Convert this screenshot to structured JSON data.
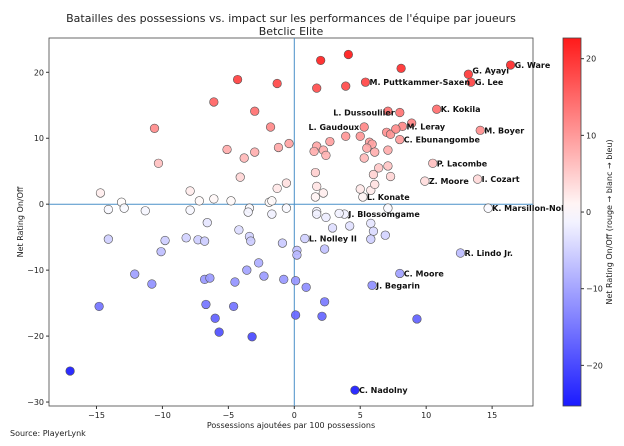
{
  "chart_data": {
    "type": "scatter",
    "title": "Batailles des possessions vs. impact sur les performances de l'équipe par joueurs",
    "subtitle": "Betclic Elite",
    "xlabel": "Possessions ajoutées par 100 possessions",
    "ylabel": "Net Rating On/Off",
    "xlim": [
      -18.6,
      18.1
    ],
    "ylim": [
      -30.6,
      25.2
    ],
    "xticks": [
      -15,
      -10,
      -5,
      0,
      5,
      10,
      15
    ],
    "yticks": [
      20,
      10,
      0,
      -10,
      -20,
      -30
    ],
    "reference_lines": {
      "x": 0,
      "y": 0
    },
    "colorbar": {
      "label": "Net Rating On/Off (rouge → blanc → bleu)",
      "range": [
        -25.3,
        22.7
      ],
      "ticks": [
        20,
        10,
        0,
        -10,
        -20
      ],
      "colormap": "bwr",
      "high_color": "#ff1a1a",
      "mid_color": "#ffffff",
      "low_color": "#1a1aff"
    },
    "source": "Source: PlayerLynk",
    "points": [
      {
        "x": 16.4,
        "y": 21.1,
        "label": "G. Ware"
      },
      {
        "x": 13.2,
        "y": 19.7,
        "label": "G. Ayayi"
      },
      {
        "x": 13.4,
        "y": 18.5,
        "label": "G. Lee"
      },
      {
        "x": 5.4,
        "y": 18.5,
        "label": "M. Puttkammer-Saxen"
      },
      {
        "x": 8.0,
        "y": 13.9,
        "label": "L. Dussouliier"
      },
      {
        "x": 10.8,
        "y": 14.4,
        "label": "K. Kokila"
      },
      {
        "x": 8.2,
        "y": 11.8,
        "label": "M. Leray"
      },
      {
        "x": 5.3,
        "y": 11.7,
        "label": "L. Gaudoux"
      },
      {
        "x": 8.0,
        "y": 9.8,
        "label": "C. Ebunangombe"
      },
      {
        "x": 14.1,
        "y": 11.2,
        "label": "M. Boyer"
      },
      {
        "x": 10.5,
        "y": 6.2,
        "label": "P. Lacombe"
      },
      {
        "x": 9.9,
        "y": 3.5,
        "label": "Z. Moore"
      },
      {
        "x": 13.9,
        "y": 3.8,
        "label": "I. Cozart"
      },
      {
        "x": 5.2,
        "y": 1.1,
        "label": "L. Konate"
      },
      {
        "x": 14.7,
        "y": -0.6,
        "label": "K. Marsillon-Nole"
      },
      {
        "x": 3.8,
        "y": -1.5,
        "label": "J. Blossomgame"
      },
      {
        "x": 0.8,
        "y": -5.2,
        "label": "L. Nolley II"
      },
      {
        "x": 12.6,
        "y": -7.4,
        "label": "R. Lindo Jr."
      },
      {
        "x": 8.0,
        "y": -10.5,
        "label": "C. Moore"
      },
      {
        "x": 5.9,
        "y": -12.3,
        "label": "J. Begarin"
      },
      {
        "x": 4.6,
        "y": -28.2,
        "label": "C. Nadolny"
      },
      {
        "x": 2.0,
        "y": 21.8
      },
      {
        "x": 4.1,
        "y": 22.7
      },
      {
        "x": 8.1,
        "y": 20.6
      },
      {
        "x": 1.7,
        "y": 17.6
      },
      {
        "x": 3.9,
        "y": 17.9
      },
      {
        "x": 7.1,
        "y": 14.1
      },
      {
        "x": 7.0,
        "y": 10.9
      },
      {
        "x": 7.3,
        "y": 10.6
      },
      {
        "x": 7.7,
        "y": 11.4
      },
      {
        "x": 8.9,
        "y": 12.3
      },
      {
        "x": 2.7,
        "y": 9.5
      },
      {
        "x": 3.9,
        "y": 10.3
      },
      {
        "x": 5.0,
        "y": 10.3
      },
      {
        "x": 1.7,
        "y": 8.8
      },
      {
        "x": 1.5,
        "y": 8.0
      },
      {
        "x": 2.2,
        "y": 8.2
      },
      {
        "x": 2.4,
        "y": 7.4
      },
      {
        "x": 5.7,
        "y": 9.4
      },
      {
        "x": 5.9,
        "y": 9.1
      },
      {
        "x": 5.5,
        "y": 8.5
      },
      {
        "x": 6.1,
        "y": 7.9
      },
      {
        "x": 5.3,
        "y": 7.0
      },
      {
        "x": 7.1,
        "y": 8.2
      },
      {
        "x": 1.6,
        "y": 4.8
      },
      {
        "x": 6.4,
        "y": 5.5
      },
      {
        "x": 7.1,
        "y": 5.8
      },
      {
        "x": 6.0,
        "y": 4.5
      },
      {
        "x": 7.3,
        "y": 4.2
      },
      {
        "x": 1.7,
        "y": 2.7
      },
      {
        "x": 2.2,
        "y": 1.7
      },
      {
        "x": 1.6,
        "y": 1.1
      },
      {
        "x": 5.0,
        "y": 2.3
      },
      {
        "x": 5.8,
        "y": 2.1
      },
      {
        "x": 6.1,
        "y": 3.0
      },
      {
        "x": 7.1,
        "y": -0.6
      },
      {
        "x": 1.7,
        "y": -1.1
      },
      {
        "x": 1.7,
        "y": -1.5
      },
      {
        "x": 2.4,
        "y": -2.0
      },
      {
        "x": 3.4,
        "y": -1.4
      },
      {
        "x": 2.9,
        "y": -3.6
      },
      {
        "x": 4.2,
        "y": -3.3
      },
      {
        "x": 5.8,
        "y": -2.9
      },
      {
        "x": 6.0,
        "y": -4.1
      },
      {
        "x": 6.9,
        "y": -4.7
      },
      {
        "x": 5.8,
        "y": -5.3
      },
      {
        "x": 2.3,
        "y": -6.8
      },
      {
        "x": 0.9,
        "y": -12.6
      },
      {
        "x": 2.3,
        "y": -14.8
      },
      {
        "x": 9.3,
        "y": -17.4
      },
      {
        "x": 2.1,
        "y": -17.0
      },
      {
        "x": -4.3,
        "y": 18.9
      },
      {
        "x": -1.3,
        "y": 18.3
      },
      {
        "x": -6.1,
        "y": 15.5
      },
      {
        "x": -3.0,
        "y": 14.1
      },
      {
        "x": -10.6,
        "y": 11.5
      },
      {
        "x": -1.8,
        "y": 11.7
      },
      {
        "x": -5.1,
        "y": 8.3
      },
      {
        "x": -1.2,
        "y": 8.6
      },
      {
        "x": -0.4,
        "y": 9.2
      },
      {
        "x": -3.8,
        "y": 7.0
      },
      {
        "x": -3.0,
        "y": 7.9
      },
      {
        "x": -10.3,
        "y": 6.2
      },
      {
        "x": -4.1,
        "y": 4.1
      },
      {
        "x": -0.6,
        "y": 3.2
      },
      {
        "x": -1.3,
        "y": 2.4
      },
      {
        "x": -14.7,
        "y": 1.7
      },
      {
        "x": -7.9,
        "y": 2.0
      },
      {
        "x": -13.1,
        "y": 0.3
      },
      {
        "x": -7.2,
        "y": 0.5
      },
      {
        "x": -6.1,
        "y": 0.8
      },
      {
        "x": -4.8,
        "y": 0.5
      },
      {
        "x": -1.9,
        "y": 0.3
      },
      {
        "x": -1.7,
        "y": 0.5
      },
      {
        "x": -14.1,
        "y": -0.8
      },
      {
        "x": -12.9,
        "y": -0.6
      },
      {
        "x": -11.3,
        "y": -1.0
      },
      {
        "x": -7.9,
        "y": -0.9
      },
      {
        "x": -3.4,
        "y": -0.6
      },
      {
        "x": -3.5,
        "y": -1.2
      },
      {
        "x": -1.7,
        "y": -1.5
      },
      {
        "x": -0.6,
        "y": -0.6
      },
      {
        "x": -6.6,
        "y": -2.8
      },
      {
        "x": -14.1,
        "y": -5.3
      },
      {
        "x": -9.8,
        "y": -5.5
      },
      {
        "x": -8.2,
        "y": -5.1
      },
      {
        "x": -7.3,
        "y": -5.4
      },
      {
        "x": -6.8,
        "y": -5.6
      },
      {
        "x": -4.2,
        "y": -3.9
      },
      {
        "x": -3.4,
        "y": -4.9
      },
      {
        "x": -3.3,
        "y": -5.6
      },
      {
        "x": -0.9,
        "y": -5.9
      },
      {
        "x": -10.1,
        "y": -7.2
      },
      {
        "x": 0.2,
        "y": -7.0
      },
      {
        "x": 0.2,
        "y": -7.7
      },
      {
        "x": -12.1,
        "y": -10.6
      },
      {
        "x": -10.8,
        "y": -12.1
      },
      {
        "x": -6.8,
        "y": -11.4
      },
      {
        "x": -6.4,
        "y": -11.2
      },
      {
        "x": -4.5,
        "y": -11.8
      },
      {
        "x": -3.6,
        "y": -10.0
      },
      {
        "x": -2.7,
        "y": -8.9
      },
      {
        "x": -2.3,
        "y": -10.9
      },
      {
        "x": -0.8,
        "y": -11.4
      },
      {
        "x": 0.1,
        "y": -11.6
      },
      {
        "x": -14.8,
        "y": -15.5
      },
      {
        "x": -6.7,
        "y": -15.2
      },
      {
        "x": -4.6,
        "y": -15.5
      },
      {
        "x": -6.0,
        "y": -17.3
      },
      {
        "x": -5.7,
        "y": -19.4
      },
      {
        "x": -3.2,
        "y": -20.1
      },
      {
        "x": 0.1,
        "y": -16.8
      },
      {
        "x": -17.0,
        "y": -25.3
      }
    ]
  }
}
